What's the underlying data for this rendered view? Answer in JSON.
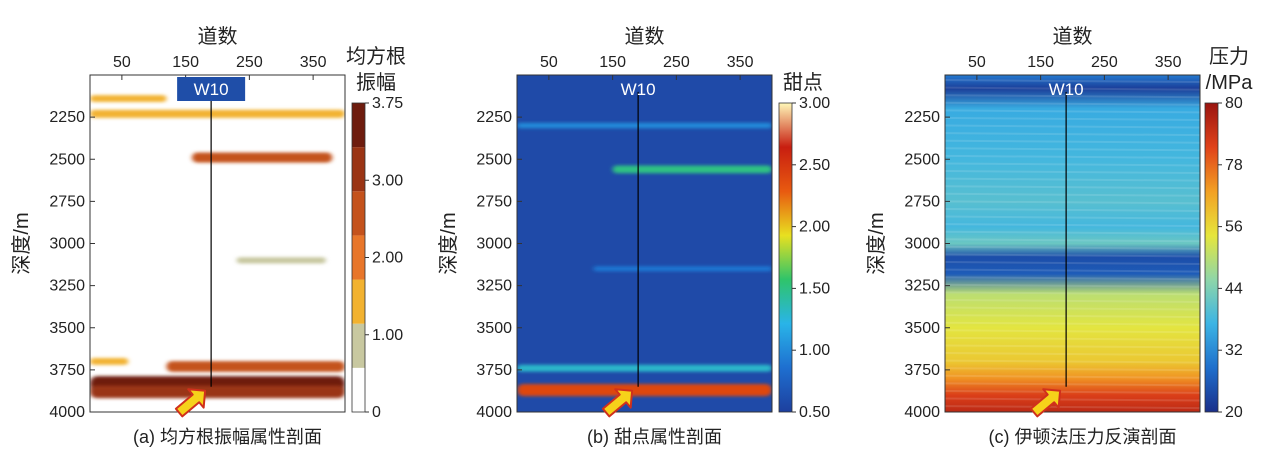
{
  "chart_data": [
    {
      "type": "heatmap",
      "caption": "(a) 均方根振幅属性剖面",
      "title": "",
      "xlabel": "道数",
      "ylabel": "深度/m",
      "colorbar_label": [
        "均方根",
        "振幅"
      ],
      "x_ticks": [
        "50",
        "150",
        "250",
        "350"
      ],
      "x_tick_values": [
        50,
        150,
        250,
        350
      ],
      "xlim": [
        0,
        400
      ],
      "y_ticks": [
        "2250",
        "2500",
        "2750",
        "3000",
        "3250",
        "3500",
        "3750",
        "4000"
      ],
      "y_tick_values": [
        2250,
        2500,
        2750,
        3000,
        3250,
        3500,
        3750,
        4000
      ],
      "ylim": [
        2000,
        4000
      ],
      "colorbar_ticks": [
        "3.75",
        "3.00",
        "2.00",
        "1.00",
        "0"
      ],
      "colorbar_tick_values": [
        3.75,
        3.0,
        2.0,
        1.0,
        0
      ],
      "colorbar_range": [
        0,
        3.75
      ],
      "colorbar_style": "discrete",
      "colors": [
        "#ffffff",
        "#c8c8a0",
        "#f2b230",
        "#e8762a",
        "#c4521c",
        "#9a3414",
        "#6e1c0e"
      ],
      "well": {
        "label": "W10",
        "trace": 190,
        "depth_range": [
          2100,
          3850
        ]
      },
      "bands": [
        {
          "depth": 3830,
          "trace_range": [
            0,
            400
          ],
          "value": 3.6
        },
        {
          "depth": 3880,
          "trace_range": [
            0,
            400
          ],
          "value": 3.0
        },
        {
          "depth": 3730,
          "trace_range": [
            120,
            400
          ],
          "value": 2.4
        },
        {
          "depth": 2490,
          "trace_range": [
            160,
            380
          ],
          "value": 2.2
        },
        {
          "depth": 2230,
          "trace_range": [
            0,
            400
          ],
          "value": 1.6
        },
        {
          "depth": 2140,
          "trace_range": [
            0,
            120
          ],
          "value": 1.2
        },
        {
          "depth": 3700,
          "trace_range": [
            0,
            60
          ],
          "value": 1.2
        },
        {
          "depth": 3100,
          "trace_range": [
            230,
            370
          ],
          "value": 1.0
        }
      ]
    },
    {
      "type": "heatmap",
      "caption": "(b) 甜点属性剖面",
      "title": "",
      "xlabel": "道数",
      "ylabel": "深度/m",
      "colorbar_label": [
        "甜点"
      ],
      "x_ticks": [
        "50",
        "150",
        "250",
        "350"
      ],
      "x_tick_values": [
        50,
        150,
        250,
        350
      ],
      "xlim": [
        0,
        400
      ],
      "y_ticks": [
        "2250",
        "2500",
        "2750",
        "3000",
        "3250",
        "3500",
        "3750",
        "4000"
      ],
      "y_tick_values": [
        2250,
        2500,
        2750,
        3000,
        3250,
        3500,
        3750,
        4000
      ],
      "ylim": [
        2000,
        4000
      ],
      "colorbar_ticks": [
        "3.00",
        "2.50",
        "2.00",
        "1.50",
        "1.00",
        "0.50"
      ],
      "colorbar_tick_values": [
        3.0,
        2.5,
        2.0,
        1.5,
        1.0,
        0.5
      ],
      "colorbar_range": [
        0.5,
        3.0
      ],
      "colorbar_style": "continuous",
      "colors": [
        "#1d3f9e",
        "#1e6fd0",
        "#29b4e8",
        "#2fc46a",
        "#e8e020",
        "#e85a10",
        "#c81e10",
        "#fff8b8"
      ],
      "background": "#1f4aa8",
      "well": {
        "label": "W10",
        "trace": 190,
        "depth_range": [
          2100,
          3850
        ]
      },
      "bands": [
        {
          "depth": 3870,
          "trace_range": [
            0,
            400
          ],
          "value": 2.4
        },
        {
          "depth": 3740,
          "trace_range": [
            0,
            400
          ],
          "value": 1.3
        },
        {
          "depth": 2560,
          "trace_range": [
            150,
            400
          ],
          "value": 1.5
        },
        {
          "depth": 2300,
          "trace_range": [
            0,
            400
          ],
          "value": 1.0
        },
        {
          "depth": 3150,
          "trace_range": [
            120,
            400
          ],
          "value": 0.9
        }
      ]
    },
    {
      "type": "heatmap",
      "caption": "(c) 伊顿法压力反演剖面",
      "title": "",
      "xlabel": "道数",
      "ylabel": "深度/m",
      "colorbar_label": [
        "压力",
        "/MPa"
      ],
      "x_ticks": [
        "50",
        "150",
        "250",
        "350"
      ],
      "x_tick_values": [
        50,
        150,
        250,
        350
      ],
      "xlim": [
        0,
        400
      ],
      "y_ticks": [
        "2250",
        "2500",
        "2750",
        "3000",
        "3250",
        "3500",
        "3750",
        "4000"
      ],
      "y_tick_values": [
        2250,
        2500,
        2750,
        3000,
        3250,
        3500,
        3750,
        4000
      ],
      "ylim": [
        2000,
        4000
      ],
      "colorbar_ticks": [
        "80",
        "78",
        "56",
        "44",
        "32",
        "20"
      ],
      "colorbar_tick_values": [
        80,
        78,
        56,
        44,
        32,
        20
      ],
      "colorbar_range": [
        20,
        80
      ],
      "colorbar_style": "continuous",
      "colors": [
        "#1a2f8a",
        "#1f6fcc",
        "#3cb4e4",
        "#8fd6a8",
        "#e6e63c",
        "#f2a024",
        "#e0421a",
        "#9a1410"
      ],
      "well": {
        "label": "W10",
        "trace": 190,
        "depth_range": [
          2100,
          3850
        ]
      },
      "depth_profile": [
        {
          "depth": 2000,
          "value": 30
        },
        {
          "depth": 2080,
          "value": 22
        },
        {
          "depth": 2200,
          "value": 36
        },
        {
          "depth": 2500,
          "value": 38
        },
        {
          "depth": 2750,
          "value": 40
        },
        {
          "depth": 2900,
          "value": 38
        },
        {
          "depth": 3000,
          "value": 42
        },
        {
          "depth": 3080,
          "value": 24
        },
        {
          "depth": 3180,
          "value": 26
        },
        {
          "depth": 3300,
          "value": 50
        },
        {
          "depth": 3500,
          "value": 54
        },
        {
          "depth": 3700,
          "value": 58
        },
        {
          "depth": 3800,
          "value": 64
        },
        {
          "depth": 3900,
          "value": 72
        },
        {
          "depth": 4000,
          "value": 76
        }
      ]
    }
  ]
}
